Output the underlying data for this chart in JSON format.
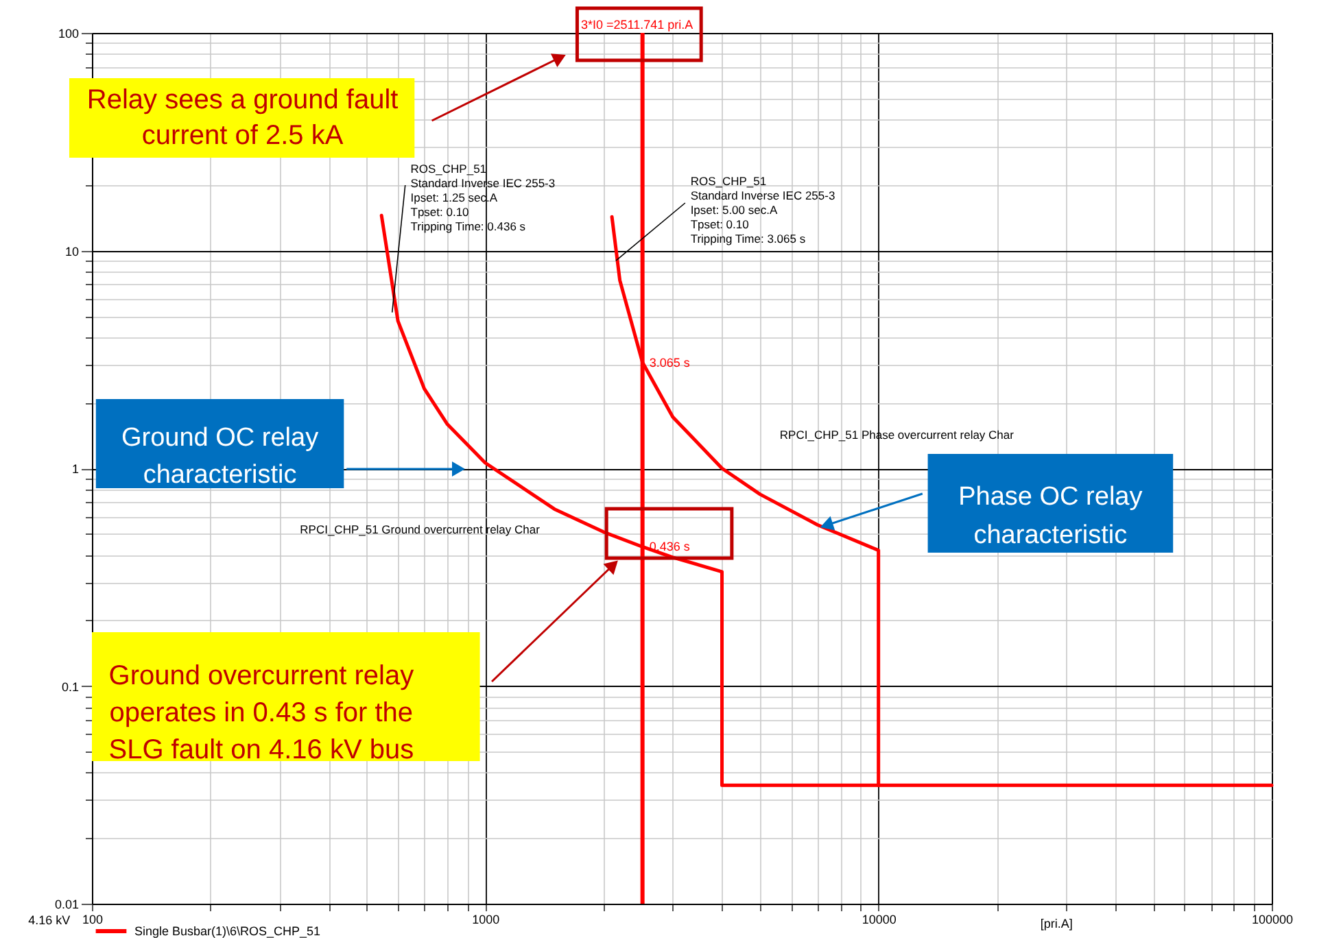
{
  "chart_data": {
    "type": "line",
    "x": [
      545,
      600,
      700,
      800,
      1000,
      1500,
      2000,
      2511.741,
      3000,
      4000,
      4000,
      100000
    ],
    "series": [
      {
        "name": "Single Busbar(1)\\6\\ROS_CHP_51",
        "color": "#ff0000",
        "values": [
          14.5,
          4.75,
          2.32,
          1.6,
          1.06,
          0.65,
          0.51,
          0.436,
          0.39,
          0.335,
          0.035,
          0.035
        ]
      },
      {
        "color": "#ff0000",
        "x": [
          2100,
          2200,
          2511.741,
          3000,
          4000,
          5000,
          7000,
          10000,
          10000
        ],
        "values": [
          14.3,
          7.3,
          3.065,
          1.72,
          1.0,
          0.76,
          0.55,
          0.42,
          0.035
        ]
      }
    ],
    "xlabel": "[pri.A]",
    "log": "xy",
    "xlim": [
      100,
      100000
    ],
    "ylim": [
      0.01,
      100
    ],
    "xticks": [
      100,
      {
        "value": 200,
        "label": null
      },
      {
        "value": 300,
        "label": null
      },
      {
        "value": 400,
        "label": null
      },
      {
        "value": 500,
        "label": null
      },
      {
        "value": 600,
        "label": null
      },
      {
        "value": 700,
        "label": null
      },
      {
        "value": 800,
        "label": null
      },
      {
        "value": 900,
        "label": null
      },
      1000,
      {
        "value": 2000,
        "label": null
      },
      {
        "value": 3000,
        "label": null
      },
      {
        "value": 4000,
        "label": null
      },
      {
        "value": 5000,
        "label": null
      },
      {
        "value": 6000,
        "label": null
      },
      {
        "value": 7000,
        "label": null
      },
      {
        "value": 8000,
        "label": null
      },
      {
        "value": 9000,
        "label": null
      },
      10000,
      {
        "value": 20000,
        "label": null
      },
      {
        "value": 30000,
        "label": null
      },
      {
        "value": 40000,
        "label": null
      },
      {
        "value": 50000,
        "label": null
      },
      {
        "value": 60000,
        "label": null
      },
      {
        "value": 70000,
        "label": null
      },
      {
        "value": 80000,
        "label": null
      },
      {
        "value": 90000,
        "label": null
      },
      100000
    ],
    "yticks": [
      0.01,
      {
        "value": 0.02,
        "label": null
      },
      {
        "value": 0.03,
        "label": null
      },
      {
        "value": 0.04,
        "label": null
      },
      {
        "value": 0.05,
        "label": null
      },
      {
        "value": 0.06,
        "label": null
      },
      {
        "value": 0.07,
        "label": null
      },
      {
        "value": 0.08,
        "label": null
      },
      {
        "value": 0.09,
        "label": null
      },
      0.1,
      {
        "value": 0.2,
        "label": null
      },
      {
        "value": 0.3,
        "label": null
      },
      {
        "value": 0.4,
        "label": null
      },
      {
        "value": 0.5,
        "label": null
      },
      {
        "value": 0.6,
        "label": null
      },
      {
        "value": 0.7,
        "label": null
      },
      {
        "value": 0.8,
        "label": null
      },
      {
        "value": 0.9,
        "label": null
      },
      1,
      {
        "value": 2,
        "label": null
      },
      {
        "value": 3,
        "label": null
      },
      {
        "value": 4,
        "label": null
      },
      {
        "value": 5,
        "label": null
      },
      {
        "value": 6,
        "label": null
      },
      {
        "value": 7,
        "label": null
      },
      {
        "value": 8,
        "label": null
      },
      {
        "value": 9,
        "label": null
      },
      10,
      {
        "value": 20,
        "label": null
      },
      {
        "value": 30,
        "label": null
      },
      {
        "value": 40,
        "label": null
      },
      {
        "value": 50,
        "label": null
      },
      {
        "value": 60,
        "label": null
      },
      {
        "value": 70,
        "label": null
      },
      {
        "value": 80,
        "label": null
      },
      {
        "value": 90,
        "label": null
      },
      100
    ],
    "grid": true,
    "legend": "bottom left",
    "ref_lines": [
      {
        "axis": "x",
        "value": 2511.741,
        "label": "3*I0 =2511.741 pri.A",
        "color": "#ff0000"
      }
    ],
    "annotations": [
      {
        "text": "3.065 s",
        "x": 2511.741,
        "y": 3.065
      },
      {
        "text": "0.436 s",
        "x": 2511.741,
        "y": 0.436
      },
      {
        "text": "ROS_CHP_51\nStandard Inverse  IEC 255-3\nIpset: 1.25 sec.A\nTpset: 0.10\nTripping Time: 0.436 s",
        "x": 580,
        "y": 5.2
      },
      {
        "text": "ROS_CHP_51\nStandard Inverse  IEC 255-3\nIpset: 5.00 sec.A\nTpset: 0.10\nTripping Time: 3.065 s",
        "x": 2150,
        "y": 9
      },
      "RPCI_CHP_51 Ground overcurrent relay Char",
      "RPCI_CHP_51 Phase overcurrent relay Char",
      "Relay sees a ground fault\ncurrent of 2.5 kA",
      "Ground OC relay\ncharacteristic",
      "Phase OC relay\ncharacteristic",
      "Ground overcurrent relay\noperates in 0.43 s for the\nSLG fault on 4.16 kV bus",
      "4.16 kV"
    ]
  }
}
